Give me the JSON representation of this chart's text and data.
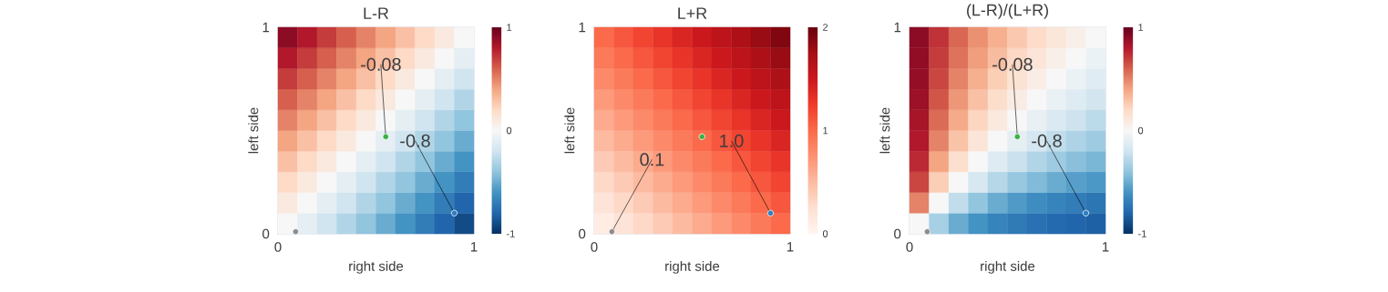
{
  "chart_data": [
    {
      "type": "heatmap",
      "title": "L-R",
      "xlabel": "right side",
      "ylabel": "left side",
      "cells": [
        [
          0.9,
          0.8,
          0.7,
          0.6,
          0.5,
          0.4,
          0.3,
          0.2,
          0.1,
          0.0
        ],
        [
          0.8,
          0.7,
          0.6,
          0.5,
          0.4,
          0.3,
          0.2,
          0.1,
          0.0,
          -0.1
        ],
        [
          0.7,
          0.6,
          0.5,
          0.4,
          0.3,
          0.2,
          0.1,
          0.0,
          -0.1,
          -0.2
        ],
        [
          0.6,
          0.5,
          0.4,
          0.3,
          0.2,
          0.1,
          0.0,
          -0.1,
          -0.2,
          -0.3
        ],
        [
          0.5,
          0.4,
          0.3,
          0.2,
          0.1,
          0.0,
          -0.1,
          -0.2,
          -0.3,
          -0.4
        ],
        [
          0.4,
          0.3,
          0.2,
          0.1,
          0.0,
          -0.1,
          -0.2,
          -0.3,
          -0.4,
          -0.5
        ],
        [
          0.3,
          0.2,
          0.1,
          0.0,
          -0.1,
          -0.2,
          -0.3,
          -0.4,
          -0.5,
          -0.6
        ],
        [
          0.2,
          0.1,
          0.0,
          -0.1,
          -0.2,
          -0.3,
          -0.4,
          -0.5,
          -0.6,
          -0.7
        ],
        [
          0.1,
          0.0,
          -0.1,
          -0.2,
          -0.3,
          -0.4,
          -0.5,
          -0.6,
          -0.7,
          -0.8
        ],
        [
          0.0,
          -0.1,
          -0.2,
          -0.3,
          -0.4,
          -0.5,
          -0.6,
          -0.7,
          -0.8,
          -0.9
        ]
      ],
      "clim": [
        -1,
        1
      ],
      "cticks": [
        -1,
        0,
        1
      ],
      "xlim": [
        0,
        1
      ],
      "ylim": [
        0,
        1
      ],
      "xticks": [
        0,
        1
      ],
      "yticks": [
        0,
        1
      ],
      "series": [
        {
          "type": "scatter",
          "x": [
            0.09,
            0.55,
            0.9
          ],
          "values": [
            0.01,
            0.47,
            0.1
          ],
          "colors": [
            "#8c8c8c",
            "#3cb043",
            "#2f7fc1"
          ]
        }
      ],
      "annotations": [
        {
          "text": "-0.08",
          "x": 0.55,
          "y": 0.47
        },
        {
          "text": "-0.8",
          "x": 0.9,
          "y": 0.1
        }
      ]
    },
    {
      "type": "heatmap",
      "title": "L+R",
      "xlabel": "right side",
      "ylabel": "left side",
      "cells": [
        [
          1.0,
          1.1,
          1.2,
          1.3,
          1.4,
          1.5,
          1.6,
          1.7,
          1.8,
          1.9
        ],
        [
          0.9,
          1.0,
          1.1,
          1.2,
          1.3,
          1.4,
          1.5,
          1.6,
          1.7,
          1.8
        ],
        [
          0.8,
          0.9,
          1.0,
          1.1,
          1.2,
          1.3,
          1.4,
          1.5,
          1.6,
          1.7
        ],
        [
          0.7,
          0.8,
          0.9,
          1.0,
          1.1,
          1.2,
          1.3,
          1.4,
          1.5,
          1.6
        ],
        [
          0.6,
          0.7,
          0.8,
          0.9,
          1.0,
          1.1,
          1.2,
          1.3,
          1.4,
          1.5
        ],
        [
          0.5,
          0.6,
          0.7,
          0.8,
          0.9,
          1.0,
          1.1,
          1.2,
          1.3,
          1.4
        ],
        [
          0.4,
          0.5,
          0.6,
          0.7,
          0.8,
          0.9,
          1.0,
          1.1,
          1.2,
          1.3
        ],
        [
          0.3,
          0.4,
          0.5,
          0.6,
          0.7,
          0.8,
          0.9,
          1.0,
          1.1,
          1.2
        ],
        [
          0.2,
          0.3,
          0.4,
          0.5,
          0.6,
          0.7,
          0.8,
          0.9,
          1.0,
          1.1
        ],
        [
          0.1,
          0.2,
          0.3,
          0.4,
          0.5,
          0.6,
          0.7,
          0.8,
          0.9,
          1.0
        ]
      ],
      "clim": [
        0,
        2
      ],
      "cticks": [
        0,
        1,
        2
      ],
      "xlim": [
        0,
        1
      ],
      "ylim": [
        0,
        1
      ],
      "xticks": [
        0,
        1
      ],
      "yticks": [
        0,
        1
      ],
      "series": [
        {
          "type": "scatter",
          "x": [
            0.09,
            0.55,
            0.9
          ],
          "values": [
            0.01,
            0.47,
            0.1
          ],
          "colors": [
            "#8c8c8c",
            "#3cb043",
            "#2f7fc1"
          ]
        }
      ],
      "annotations": [
        {
          "text": "0.1",
          "x": 0.09,
          "y": 0.01
        },
        {
          "text": "1.0",
          "x": 0.9,
          "y": 0.1
        }
      ]
    },
    {
      "type": "heatmap",
      "title": "(L-R)/(L+R)",
      "xlabel": "right side",
      "ylabel": "left side",
      "cells": [
        [
          0.9,
          0.73,
          0.58,
          0.46,
          0.36,
          0.27,
          0.19,
          0.12,
          0.06,
          0.0
        ],
        [
          0.89,
          0.7,
          0.55,
          0.42,
          0.31,
          0.21,
          0.13,
          0.06,
          0.0,
          -0.06
        ],
        [
          0.88,
          0.67,
          0.5,
          0.36,
          0.25,
          0.15,
          0.07,
          0.0,
          -0.06,
          -0.12
        ],
        [
          0.86,
          0.63,
          0.44,
          0.3,
          0.18,
          0.08,
          0.0,
          -0.07,
          -0.13,
          -0.19
        ],
        [
          0.83,
          0.57,
          0.38,
          0.22,
          0.1,
          0.0,
          -0.08,
          -0.15,
          -0.21,
          -0.27
        ],
        [
          0.8,
          0.5,
          0.29,
          0.13,
          0.0,
          -0.1,
          -0.18,
          -0.25,
          -0.31,
          -0.36
        ],
        [
          0.75,
          0.4,
          0.17,
          0.0,
          -0.13,
          -0.22,
          -0.3,
          -0.36,
          -0.42,
          -0.46
        ],
        [
          0.67,
          0.25,
          0.0,
          -0.17,
          -0.29,
          -0.38,
          -0.44,
          -0.5,
          -0.55,
          -0.58
        ],
        [
          0.5,
          0.0,
          -0.25,
          -0.4,
          -0.5,
          -0.57,
          -0.63,
          -0.67,
          -0.7,
          -0.73
        ],
        [
          0.0,
          -0.33,
          -0.5,
          -0.6,
          -0.67,
          -0.71,
          -0.75,
          -0.78,
          -0.8,
          -0.82
        ]
      ],
      "clim": [
        -1,
        1
      ],
      "cticks": [
        -1,
        0,
        1
      ],
      "xlim": [
        0,
        1
      ],
      "ylim": [
        0,
        1
      ],
      "xticks": [
        0,
        1
      ],
      "yticks": [
        0,
        1
      ],
      "series": [
        {
          "type": "scatter",
          "x": [
            0.09,
            0.55,
            0.9
          ],
          "values": [
            0.01,
            0.47,
            0.1
          ],
          "colors": [
            "#8c8c8c",
            "#3cb043",
            "#2f7fc1"
          ]
        }
      ],
      "annotations": [
        {
          "text": "-0.08",
          "x": 0.55,
          "y": 0.47
        },
        {
          "text": "-0.8",
          "x": 0.9,
          "y": 0.1
        }
      ]
    }
  ]
}
